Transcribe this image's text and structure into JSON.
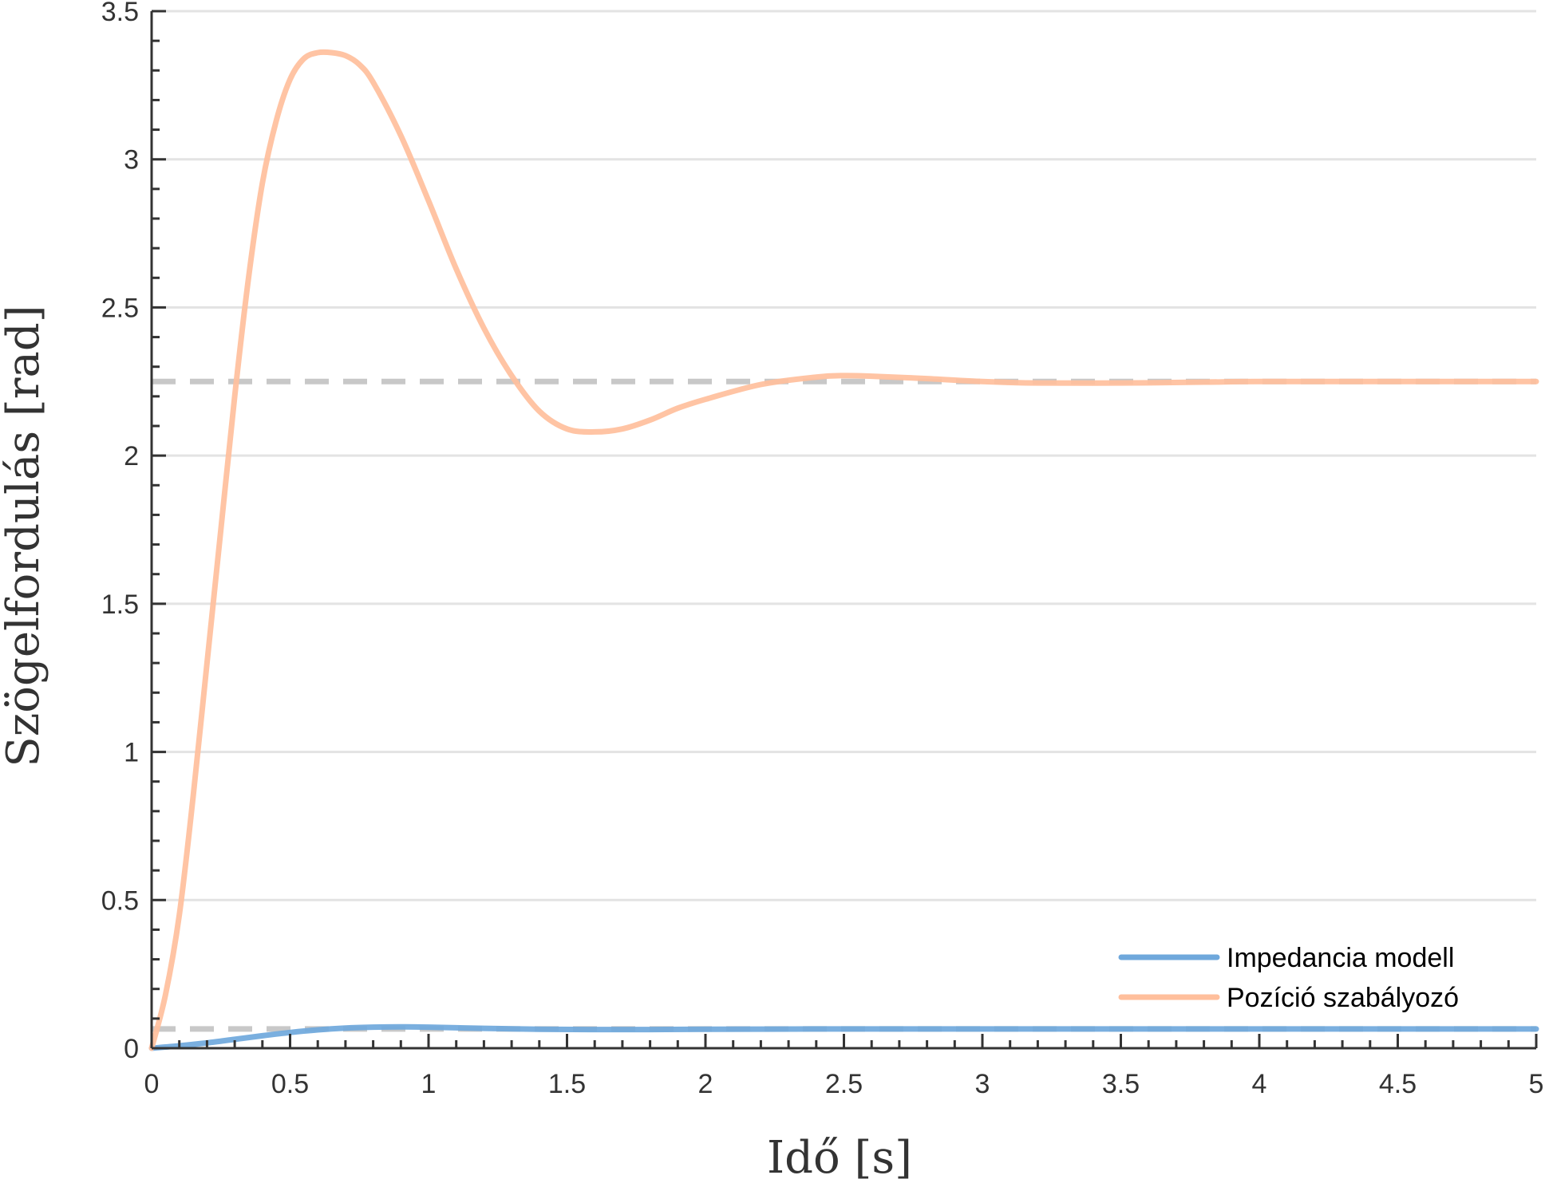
{
  "chart_data": {
    "type": "line",
    "xlabel": "Idő [s]",
    "ylabel": "Szögelfordulás [rad]",
    "xlim": [
      0,
      5
    ],
    "ylim": [
      0,
      3.5
    ],
    "xticks": [
      "0",
      "0.5",
      "1",
      "1.5",
      "2",
      "2.5",
      "3",
      "3.5",
      "4",
      "4.5",
      "5"
    ],
    "yticks": [
      "0",
      "0.5",
      "1",
      "1.5",
      "2",
      "2.5",
      "3",
      "3.5"
    ],
    "grid": "horizontal",
    "legend_position": "bottom-right",
    "reference_lines": [
      {
        "y": 2.25,
        "style": "dashed",
        "color": "#c8c8c8"
      },
      {
        "y": 0.065,
        "style": "dashed",
        "color": "#c8c8c8"
      }
    ],
    "series": [
      {
        "name": "Impedancia modell",
        "color": "#6fa8dc",
        "x": [
          0,
          0.1,
          0.2,
          0.3,
          0.4,
          0.5,
          0.6,
          0.7,
          0.8,
          0.9,
          1.0,
          1.1,
          1.2,
          1.4,
          1.6,
          1.8,
          2.0,
          2.5,
          3.0,
          3.5,
          4.0,
          4.5,
          5.0
        ],
        "y": [
          0,
          0.008,
          0.018,
          0.03,
          0.042,
          0.053,
          0.062,
          0.068,
          0.071,
          0.072,
          0.071,
          0.069,
          0.067,
          0.064,
          0.063,
          0.063,
          0.064,
          0.065,
          0.065,
          0.065,
          0.065,
          0.065,
          0.065
        ]
      },
      {
        "name": "Pozíció szabályozó",
        "color": "#ffbf9c",
        "x": [
          0,
          0.05,
          0.1,
          0.15,
          0.2,
          0.25,
          0.3,
          0.35,
          0.4,
          0.45,
          0.5,
          0.55,
          0.6,
          0.65,
          0.7,
          0.75,
          0.8,
          0.9,
          1.0,
          1.1,
          1.2,
          1.3,
          1.4,
          1.5,
          1.6,
          1.7,
          1.8,
          1.9,
          2.0,
          2.2,
          2.4,
          2.5,
          2.6,
          2.8,
          3.0,
          3.2,
          3.5,
          3.8,
          4.0,
          4.5,
          5.0
        ],
        "y": [
          0,
          0.18,
          0.45,
          0.85,
          1.3,
          1.75,
          2.2,
          2.6,
          2.92,
          3.13,
          3.27,
          3.34,
          3.36,
          3.36,
          3.35,
          3.32,
          3.26,
          3.08,
          2.86,
          2.63,
          2.43,
          2.27,
          2.15,
          2.09,
          2.08,
          2.09,
          2.12,
          2.16,
          2.19,
          2.24,
          2.265,
          2.27,
          2.268,
          2.26,
          2.25,
          2.245,
          2.245,
          2.248,
          2.25,
          2.25,
          2.25
        ]
      }
    ]
  }
}
